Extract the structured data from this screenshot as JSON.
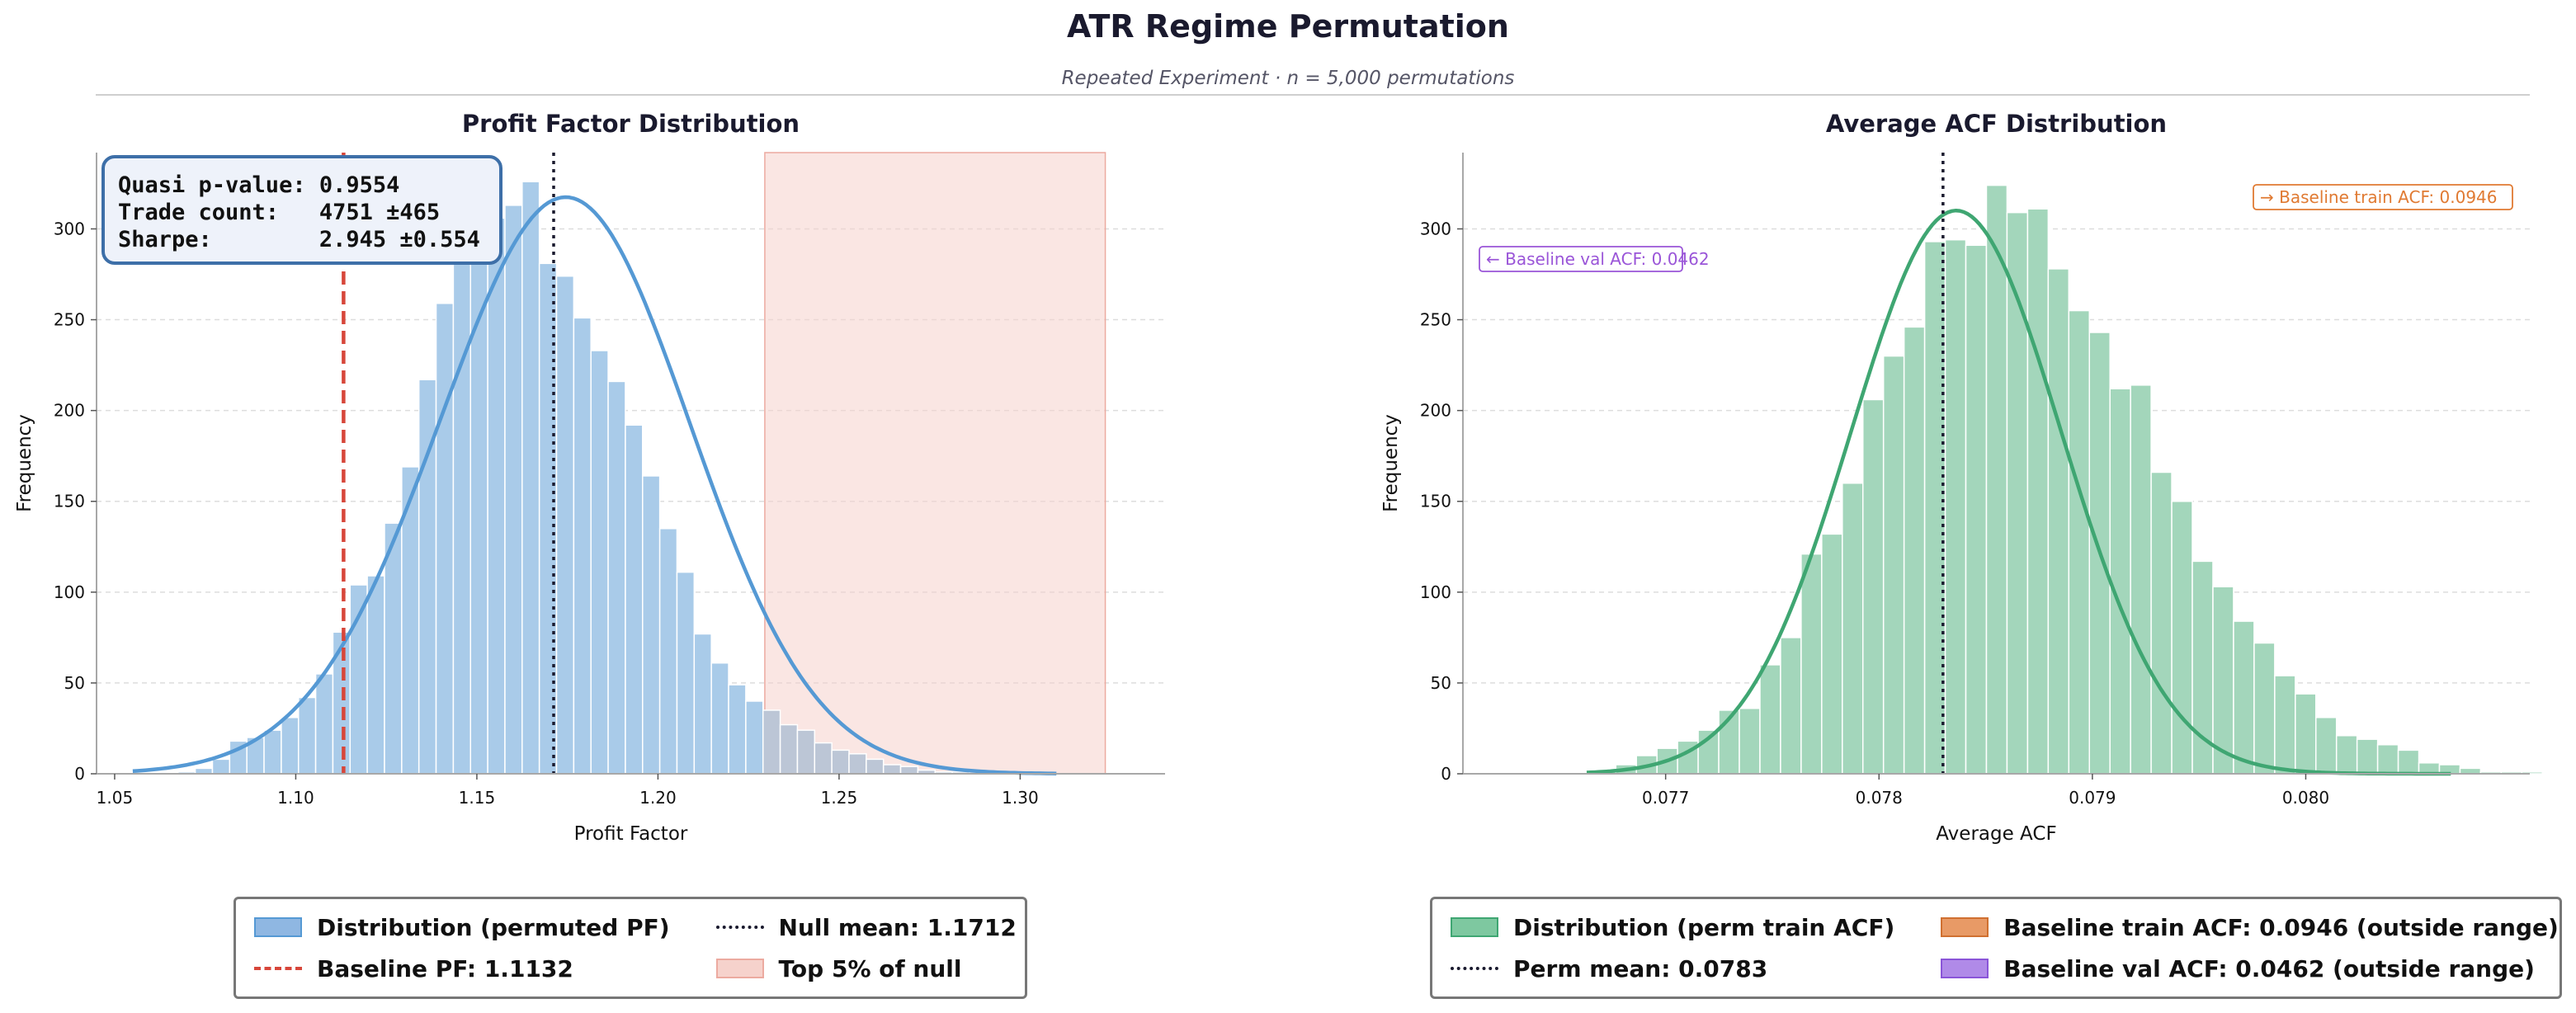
{
  "page": {
    "title": "ATR Regime Permutation",
    "subtitle": "Repeated Experiment  ·  n = 5,000 permutations"
  },
  "colors": {
    "pf_bar": "#a9cbe9",
    "pf_line": "#5599d4",
    "acf_bar": "#a3d6bb",
    "acf_line": "#3fa672",
    "baseline_red": "#d7463a",
    "top5_fill": "#f6d2cc",
    "orange": "#e07a32",
    "purple": "#9a55d8"
  },
  "chart_data": [
    {
      "type": "bar",
      "title": "Profit Factor Distribution",
      "xlabel": "Profit Factor",
      "ylabel": "Frequency",
      "xlim": [
        1.045,
        1.34
      ],
      "ylim": [
        0,
        342
      ],
      "xticks": [
        "1.05",
        "1.10",
        "1.15",
        "1.20",
        "1.25",
        "1.30"
      ],
      "yticks": [
        "0",
        "50",
        "100",
        "150",
        "200",
        "250",
        "300"
      ],
      "bin_start": 1.0675,
      "bin_width": 0.00475,
      "counts": [
        1,
        3,
        8,
        18,
        20,
        24,
        31,
        42,
        55,
        78,
        104,
        109,
        138,
        169,
        217,
        259,
        281,
        313,
        306,
        313,
        326,
        281,
        274,
        251,
        233,
        216,
        192,
        164,
        135,
        111,
        77,
        61,
        49,
        40,
        35,
        27,
        24,
        17,
        13,
        11,
        8,
        5,
        4,
        2,
        1,
        1
      ],
      "kde": {
        "x_min": 1.055,
        "x_max": 1.31,
        "mean": 1.166,
        "sd": 0.036,
        "peak": 308,
        "skew": 0.6
      },
      "shaded_region": {
        "label": "Top 5% of null",
        "x_start": 1.2295,
        "x_end": 1.3235
      },
      "vlines": [
        {
          "label": "Baseline PF: 1.1132",
          "x": 1.1132,
          "style": "dashed"
        },
        {
          "label": "Null mean: 1.1712",
          "x": 1.1712,
          "style": "dotted"
        }
      ],
      "stats_box": [
        "Quasi p-value: 0.9554",
        "Trade count:   4751 ±465",
        "Sharpe:        2.945 ±0.554"
      ],
      "legend": {
        "placement": "below",
        "items": [
          {
            "label": "Distribution (permuted PF)",
            "kind": "patch",
            "color": "#8fb7e2",
            "edge": "#5599d4"
          },
          {
            "label": "Null mean: 1.1712",
            "kind": "dotted",
            "color": "#1a1a2e"
          },
          {
            "label": "Baseline PF: 1.1132",
            "kind": "dashed",
            "color": "#d7463a"
          },
          {
            "label": "Top 5% of null",
            "kind": "patch",
            "color": "#f6d2cc",
            "edge": "#ecaaa0"
          }
        ]
      }
    },
    {
      "type": "bar",
      "title": "Average ACF Distribution",
      "xlabel": "Average ACF",
      "ylabel": "Frequency",
      "xlim": [
        0.07605,
        0.08105
      ],
      "ylim": [
        0,
        342
      ],
      "xticks": [
        "0.077",
        "0.078",
        "0.079",
        "0.080"
      ],
      "yticks": [
        "0",
        "50",
        "100",
        "150",
        "200",
        "250",
        "300"
      ],
      "bin_start": 0.07667,
      "bin_width": 9.65e-05,
      "counts": [
        2,
        5,
        10,
        14,
        18,
        24,
        35,
        36,
        60,
        75,
        121,
        132,
        160,
        206,
        230,
        246,
        293,
        294,
        291,
        324,
        309,
        311,
        278,
        255,
        243,
        212,
        214,
        166,
        150,
        117,
        103,
        84,
        72,
        54,
        44,
        31,
        21,
        19,
        16,
        13,
        6,
        5,
        3,
        1,
        1,
        1,
        0,
        0,
        0,
        0,
        1
      ],
      "kde": {
        "x_min": 0.07663,
        "x_max": 0.08068,
        "mean": 0.07832,
        "sd": 0.000495,
        "peak": 309,
        "skew": 0.2
      },
      "vlines": [
        {
          "label": "Perm mean: 0.0783",
          "x": 0.0783,
          "style": "dotted"
        }
      ],
      "annotations": [
        {
          "text": "→ Baseline train ACF: 0.0946",
          "placement": "top-right"
        },
        {
          "text": "← Baseline val ACF: 0.0462",
          "placement": "top-left"
        }
      ],
      "legend": {
        "placement": "below",
        "items": [
          {
            "label": "Distribution (perm train ACF)",
            "kind": "patch",
            "color": "#7ec8a0",
            "edge": "#3fa672"
          },
          {
            "label": "Baseline train ACF: 0.0946 (outside range)",
            "kind": "patch",
            "color": "#e89a66",
            "edge": "#d07030"
          },
          {
            "label": "Perm mean: 0.0783",
            "kind": "dotted",
            "color": "#1a1a2e"
          },
          {
            "label": "Baseline val ACF: 0.0462 (outside range)",
            "kind": "patch",
            "color": "#b08ae8",
            "edge": "#8a55d8"
          }
        ]
      }
    }
  ]
}
